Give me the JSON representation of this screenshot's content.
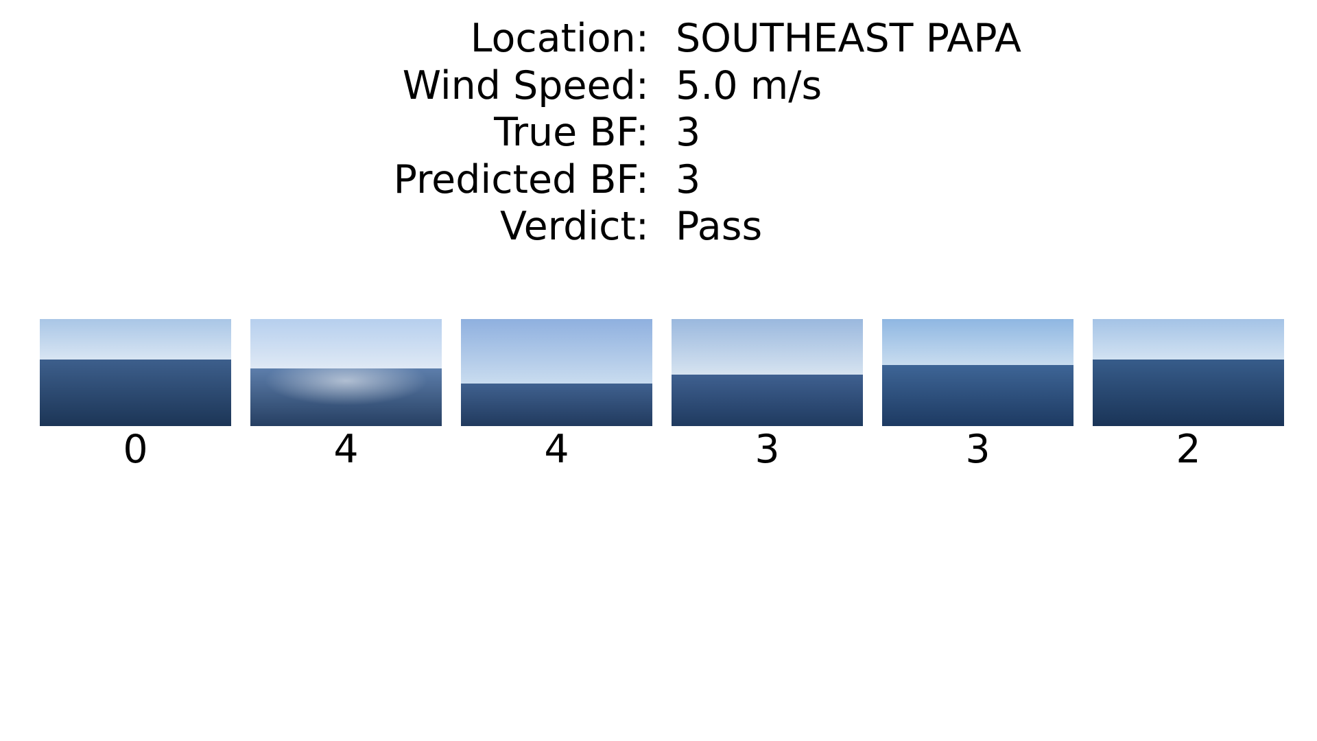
{
  "info": {
    "rows": [
      {
        "key": "Location:",
        "value": "SOUTHEAST PAPA"
      },
      {
        "key": "Wind Speed:",
        "value": "5.0 m/s"
      },
      {
        "key": "True BF:",
        "value": "3"
      },
      {
        "key": "Predicted BF:",
        "value": "3"
      },
      {
        "key": "Verdict:",
        "value": "Pass"
      }
    ]
  },
  "thumbnails": [
    {
      "label": "0",
      "sky_top": "#a9c6e6",
      "sky_bottom": "#d8e5f3",
      "sea_top": "#3d5f8c",
      "sea_bottom": "#1c3556",
      "horizon": 0.38
    },
    {
      "label": "4",
      "sky_top": "#b6cfee",
      "sky_bottom": "#dfe9f5",
      "sea_top": "#5d7eab",
      "sea_bottom": "#263f62",
      "horizon": 0.46
    },
    {
      "label": "4",
      "sky_top": "#8fb0df",
      "sky_bottom": "#c9dcef",
      "sea_top": "#40618f",
      "sea_bottom": "#213a5e",
      "horizon": 0.6
    },
    {
      "label": "3",
      "sky_top": "#9ab8de",
      "sky_bottom": "#d6e3f0",
      "sea_top": "#3f6090",
      "sea_bottom": "#1f3a5f",
      "horizon": 0.52
    },
    {
      "label": "3",
      "sky_top": "#8fb7e2",
      "sky_bottom": "#c8dcef",
      "sea_top": "#3e6596",
      "sea_bottom": "#1d3a62",
      "horizon": 0.43
    },
    {
      "label": "2",
      "sky_top": "#a4c3e6",
      "sky_bottom": "#d2e2f2",
      "sea_top": "#375c8a",
      "sea_bottom": "#1a3457",
      "horizon": 0.38
    }
  ]
}
